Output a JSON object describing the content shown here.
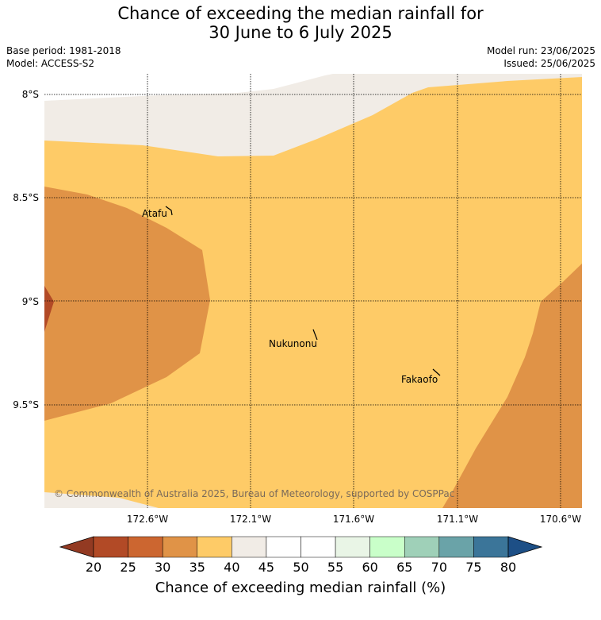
{
  "title_line1": "Chance of exceeding the median rainfall for",
  "title_line2": "30 June to 6 July 2025",
  "meta": {
    "base_period": "Base period: 1981-2018",
    "model": "Model: ACCESS-S2",
    "model_run": "Model run: 23/06/2025",
    "issued": "Issued: 25/06/2025"
  },
  "map": {
    "lat_labels": [
      "8°S",
      "8.5°S",
      "9°S",
      "9.5°S"
    ],
    "lon_labels": [
      "172.6°W",
      "172.1°W",
      "171.6°W",
      "171.1°W",
      "170.6°W"
    ],
    "places": [
      {
        "name": "Atafu"
      },
      {
        "name": "Nukunonu"
      },
      {
        "name": "Fakaofo"
      }
    ],
    "credit": "© Commonwealth of Australia 2025, Bureau of Meteorology, supported by COSPPac",
    "category_colors": {
      "20-25": "#b24a26",
      "30-35": "#e09347",
      "35-40": "#fecb67",
      "40-45": "#f1ece6"
    }
  },
  "colorbar": {
    "ticks": [
      "20",
      "25",
      "30",
      "35",
      "40",
      "45",
      "50",
      "55",
      "60",
      "65",
      "70",
      "75",
      "80"
    ],
    "colors": [
      "#b24a26",
      "#cc6630",
      "#e09347",
      "#fecb67",
      "#f1ece6",
      "#ffffff",
      "#ffffff",
      "#e9f5e6",
      "#c9ffc9",
      "#9fd0b8",
      "#6aa3a8",
      "#3b7599"
    ],
    "under_color": "#933a22",
    "over_color": "#1d4f86",
    "label": "Chance of exceeding median rainfall (%)"
  }
}
